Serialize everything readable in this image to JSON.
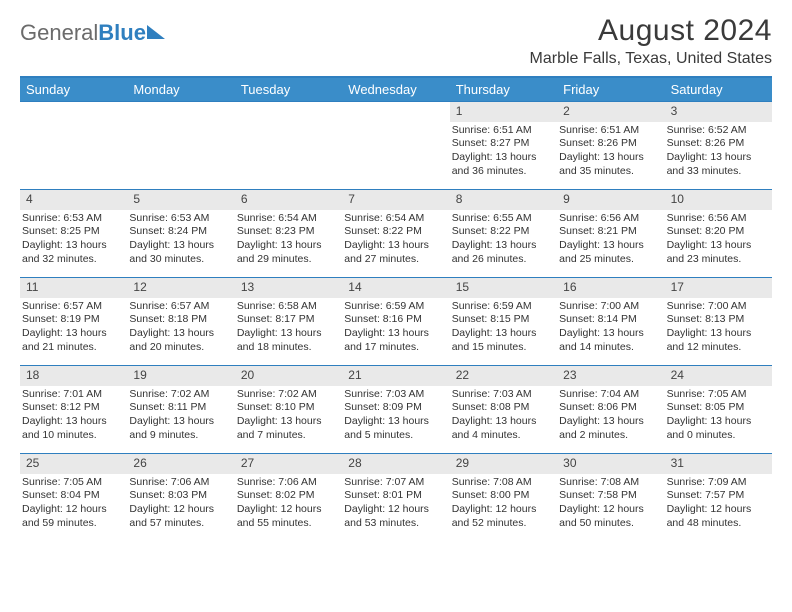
{
  "logo": {
    "text_gray": "General",
    "text_blue": "Blue"
  },
  "header": {
    "month_title": "August 2024",
    "location": "Marble Falls, Texas, United States"
  },
  "colors": {
    "header_bar": "#3a8dc9",
    "accent": "#2f7fbf",
    "daynum_bg": "#e9e9e9",
    "text": "#333333",
    "logo_gray": "#6b6b6b"
  },
  "day_names": [
    "Sunday",
    "Monday",
    "Tuesday",
    "Wednesday",
    "Thursday",
    "Friday",
    "Saturday"
  ],
  "weeks": [
    [
      {
        "empty": true
      },
      {
        "empty": true
      },
      {
        "empty": true
      },
      {
        "empty": true
      },
      {
        "day": "1",
        "sunrise": "Sunrise: 6:51 AM",
        "sunset": "Sunset: 8:27 PM",
        "daylight1": "Daylight: 13 hours",
        "daylight2": "and 36 minutes."
      },
      {
        "day": "2",
        "sunrise": "Sunrise: 6:51 AM",
        "sunset": "Sunset: 8:26 PM",
        "daylight1": "Daylight: 13 hours",
        "daylight2": "and 35 minutes."
      },
      {
        "day": "3",
        "sunrise": "Sunrise: 6:52 AM",
        "sunset": "Sunset: 8:26 PM",
        "daylight1": "Daylight: 13 hours",
        "daylight2": "and 33 minutes."
      }
    ],
    [
      {
        "day": "4",
        "sunrise": "Sunrise: 6:53 AM",
        "sunset": "Sunset: 8:25 PM",
        "daylight1": "Daylight: 13 hours",
        "daylight2": "and 32 minutes."
      },
      {
        "day": "5",
        "sunrise": "Sunrise: 6:53 AM",
        "sunset": "Sunset: 8:24 PM",
        "daylight1": "Daylight: 13 hours",
        "daylight2": "and 30 minutes."
      },
      {
        "day": "6",
        "sunrise": "Sunrise: 6:54 AM",
        "sunset": "Sunset: 8:23 PM",
        "daylight1": "Daylight: 13 hours",
        "daylight2": "and 29 minutes."
      },
      {
        "day": "7",
        "sunrise": "Sunrise: 6:54 AM",
        "sunset": "Sunset: 8:22 PM",
        "daylight1": "Daylight: 13 hours",
        "daylight2": "and 27 minutes."
      },
      {
        "day": "8",
        "sunrise": "Sunrise: 6:55 AM",
        "sunset": "Sunset: 8:22 PM",
        "daylight1": "Daylight: 13 hours",
        "daylight2": "and 26 minutes."
      },
      {
        "day": "9",
        "sunrise": "Sunrise: 6:56 AM",
        "sunset": "Sunset: 8:21 PM",
        "daylight1": "Daylight: 13 hours",
        "daylight2": "and 25 minutes."
      },
      {
        "day": "10",
        "sunrise": "Sunrise: 6:56 AM",
        "sunset": "Sunset: 8:20 PM",
        "daylight1": "Daylight: 13 hours",
        "daylight2": "and 23 minutes."
      }
    ],
    [
      {
        "day": "11",
        "sunrise": "Sunrise: 6:57 AM",
        "sunset": "Sunset: 8:19 PM",
        "daylight1": "Daylight: 13 hours",
        "daylight2": "and 21 minutes."
      },
      {
        "day": "12",
        "sunrise": "Sunrise: 6:57 AM",
        "sunset": "Sunset: 8:18 PM",
        "daylight1": "Daylight: 13 hours",
        "daylight2": "and 20 minutes."
      },
      {
        "day": "13",
        "sunrise": "Sunrise: 6:58 AM",
        "sunset": "Sunset: 8:17 PM",
        "daylight1": "Daylight: 13 hours",
        "daylight2": "and 18 minutes."
      },
      {
        "day": "14",
        "sunrise": "Sunrise: 6:59 AM",
        "sunset": "Sunset: 8:16 PM",
        "daylight1": "Daylight: 13 hours",
        "daylight2": "and 17 minutes."
      },
      {
        "day": "15",
        "sunrise": "Sunrise: 6:59 AM",
        "sunset": "Sunset: 8:15 PM",
        "daylight1": "Daylight: 13 hours",
        "daylight2": "and 15 minutes."
      },
      {
        "day": "16",
        "sunrise": "Sunrise: 7:00 AM",
        "sunset": "Sunset: 8:14 PM",
        "daylight1": "Daylight: 13 hours",
        "daylight2": "and 14 minutes."
      },
      {
        "day": "17",
        "sunrise": "Sunrise: 7:00 AM",
        "sunset": "Sunset: 8:13 PM",
        "daylight1": "Daylight: 13 hours",
        "daylight2": "and 12 minutes."
      }
    ],
    [
      {
        "day": "18",
        "sunrise": "Sunrise: 7:01 AM",
        "sunset": "Sunset: 8:12 PM",
        "daylight1": "Daylight: 13 hours",
        "daylight2": "and 10 minutes."
      },
      {
        "day": "19",
        "sunrise": "Sunrise: 7:02 AM",
        "sunset": "Sunset: 8:11 PM",
        "daylight1": "Daylight: 13 hours",
        "daylight2": "and 9 minutes."
      },
      {
        "day": "20",
        "sunrise": "Sunrise: 7:02 AM",
        "sunset": "Sunset: 8:10 PM",
        "daylight1": "Daylight: 13 hours",
        "daylight2": "and 7 minutes."
      },
      {
        "day": "21",
        "sunrise": "Sunrise: 7:03 AM",
        "sunset": "Sunset: 8:09 PM",
        "daylight1": "Daylight: 13 hours",
        "daylight2": "and 5 minutes."
      },
      {
        "day": "22",
        "sunrise": "Sunrise: 7:03 AM",
        "sunset": "Sunset: 8:08 PM",
        "daylight1": "Daylight: 13 hours",
        "daylight2": "and 4 minutes."
      },
      {
        "day": "23",
        "sunrise": "Sunrise: 7:04 AM",
        "sunset": "Sunset: 8:06 PM",
        "daylight1": "Daylight: 13 hours",
        "daylight2": "and 2 minutes."
      },
      {
        "day": "24",
        "sunrise": "Sunrise: 7:05 AM",
        "sunset": "Sunset: 8:05 PM",
        "daylight1": "Daylight: 13 hours",
        "daylight2": "and 0 minutes."
      }
    ],
    [
      {
        "day": "25",
        "sunrise": "Sunrise: 7:05 AM",
        "sunset": "Sunset: 8:04 PM",
        "daylight1": "Daylight: 12 hours",
        "daylight2": "and 59 minutes."
      },
      {
        "day": "26",
        "sunrise": "Sunrise: 7:06 AM",
        "sunset": "Sunset: 8:03 PM",
        "daylight1": "Daylight: 12 hours",
        "daylight2": "and 57 minutes."
      },
      {
        "day": "27",
        "sunrise": "Sunrise: 7:06 AM",
        "sunset": "Sunset: 8:02 PM",
        "daylight1": "Daylight: 12 hours",
        "daylight2": "and 55 minutes."
      },
      {
        "day": "28",
        "sunrise": "Sunrise: 7:07 AM",
        "sunset": "Sunset: 8:01 PM",
        "daylight1": "Daylight: 12 hours",
        "daylight2": "and 53 minutes."
      },
      {
        "day": "29",
        "sunrise": "Sunrise: 7:08 AM",
        "sunset": "Sunset: 8:00 PM",
        "daylight1": "Daylight: 12 hours",
        "daylight2": "and 52 minutes."
      },
      {
        "day": "30",
        "sunrise": "Sunrise: 7:08 AM",
        "sunset": "Sunset: 7:58 PM",
        "daylight1": "Daylight: 12 hours",
        "daylight2": "and 50 minutes."
      },
      {
        "day": "31",
        "sunrise": "Sunrise: 7:09 AM",
        "sunset": "Sunset: 7:57 PM",
        "daylight1": "Daylight: 12 hours",
        "daylight2": "and 48 minutes."
      }
    ]
  ]
}
